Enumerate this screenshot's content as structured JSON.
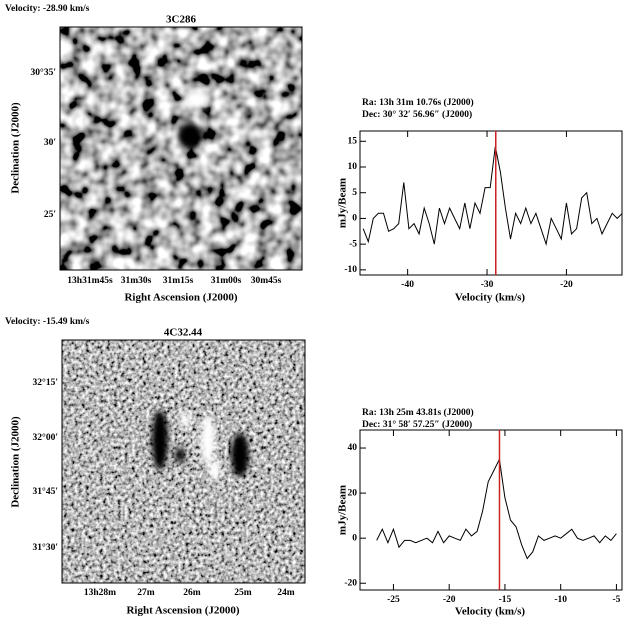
{
  "chart_data": [
    {
      "type": "image",
      "velocity_label": "Velocity: -28.90 km/s",
      "title": "3C286",
      "xlabel": "Right Ascension (J2000)",
      "ylabel": "Declination (J2000)",
      "xtick_labels": [
        "13h31m45s",
        "31m30s",
        "31m15s",
        "31m00s",
        "30m45s"
      ],
      "ytick_labels": [
        "30°35′",
        "30′",
        "25′"
      ]
    },
    {
      "type": "line",
      "annotations": [
        "Ra: 13h 31m 10.76s (J2000)",
        "Dec: 30° 32′ 56.96″ (J2000)"
      ],
      "xlabel": "Velocity (km/s)",
      "ylabel": "mJy/Beam",
      "xlim": [
        -46,
        -13
      ],
      "xticks": [
        -40,
        -30,
        -20
      ],
      "ylim": [
        -11,
        17
      ],
      "yticks": [
        -10,
        -5,
        0,
        5,
        10,
        15
      ],
      "marker_x": -28.9,
      "marker_color": "#cc2222",
      "color": "#000000",
      "x": [
        -45.6,
        -44.96,
        -44.32,
        -43.68,
        -43.04,
        -42.4,
        -41.76,
        -41.12,
        -40.48,
        -39.84,
        -39.2,
        -38.56,
        -37.92,
        -37.28,
        -36.64,
        -36,
        -35.36,
        -34.72,
        -34.08,
        -33.44,
        -32.8,
        -32.16,
        -31.52,
        -30.88,
        -30.24,
        -29.6,
        -28.96,
        -28.32,
        -27.68,
        -27.04,
        -26.4,
        -25.76,
        -25.12,
        -24.48,
        -23.84,
        -23.2,
        -22.56,
        -21.92,
        -21.28,
        -20.64,
        -20,
        -19.36,
        -18.72,
        -18.08,
        -17.44,
        -16.8,
        -16.16,
        -15.52,
        -14.88,
        -14.24,
        -13.6,
        -12.96
      ],
      "values": [
        -2,
        -4.5,
        0,
        1,
        1,
        -2.5,
        -2,
        -1,
        7,
        -2,
        -1,
        -3,
        2,
        -1,
        -5,
        2,
        -1,
        2,
        0,
        -2,
        3,
        -2,
        3,
        1,
        6,
        6,
        14,
        9,
        2,
        -4,
        1,
        -1,
        2,
        -1,
        1,
        -2,
        -5,
        0,
        -2,
        -4,
        3,
        -3,
        -2,
        4,
        5,
        -1,
        0,
        -3,
        -1,
        1,
        0,
        1
      ]
    },
    {
      "type": "image",
      "velocity_label": "Velocity: -15.49 km/s",
      "title": "4C32.44",
      "xlabel": "Right Ascension (J2000)",
      "ylabel": "Declination (J2000)",
      "xtick_labels": [
        "13h28m",
        "27m",
        "26m",
        "25m",
        "24m"
      ],
      "ytick_labels": [
        "32°15′",
        "32°00′",
        "31°45′",
        "31°30′"
      ]
    },
    {
      "type": "line",
      "annotations": [
        "Ra: 13h 25m 43.81s (J2000)",
        "Dec: 31° 58′ 57.25″ (J2000)"
      ],
      "xlabel": "Velocity (km/s)",
      "ylabel": "mJy/Beam",
      "xlim": [
        -28,
        -4.5
      ],
      "xticks": [
        -25,
        -20,
        -15,
        -10,
        -5
      ],
      "ylim": [
        -23,
        48
      ],
      "yticks": [
        -20,
        0,
        20,
        40
      ],
      "marker_x": -15.49,
      "marker_color": "#cc2222",
      "color": "#000000",
      "x": [
        -26.5,
        -26,
        -25.5,
        -25,
        -24.5,
        -24,
        -23.5,
        -23,
        -22.5,
        -22,
        -21.5,
        -21,
        -20.5,
        -20,
        -19.5,
        -19,
        -18.5,
        -18,
        -17.5,
        -17,
        -16.5,
        -16,
        -15.5,
        -15,
        -14.5,
        -14,
        -13.5,
        -13,
        -12.5,
        -12,
        -11.5,
        -11,
        -10.5,
        -10,
        -9.5,
        -9,
        -8.5,
        -8,
        -7.5,
        -7,
        -6.5,
        -6,
        -5.5,
        -5
      ],
      "values": [
        -1,
        4,
        -2,
        4,
        -4,
        -1,
        -1,
        -2,
        -1,
        0,
        -2,
        3,
        -2,
        1,
        0,
        -1,
        4,
        1,
        3,
        12,
        25,
        30,
        35,
        18,
        8,
        5,
        -3,
        -9,
        -6,
        1,
        -1,
        0,
        1,
        0,
        2,
        4,
        0,
        -1,
        0,
        1,
        -2,
        1,
        -1,
        2
      ]
    }
  ]
}
